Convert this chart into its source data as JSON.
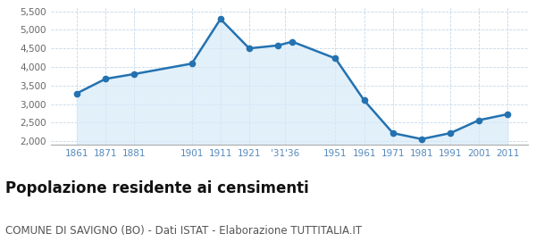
{
  "years": [
    1861,
    1871,
    1881,
    1901,
    1911,
    1921,
    1931,
    1936,
    1951,
    1961,
    1971,
    1981,
    1991,
    2001,
    2011
  ],
  "population": [
    3290,
    3680,
    3810,
    4090,
    5290,
    4500,
    4580,
    4680,
    4230,
    3100,
    2220,
    2060,
    2220,
    2570,
    2730
  ],
  "x_tick_labels": [
    "1861",
    "1871",
    "1881",
    "1901",
    "1911",
    "1921",
    "'31'36",
    "1951",
    "1961",
    "1971",
    "1981",
    "1991",
    "2001",
    "2011"
  ],
  "x_tick_positions": [
    1861,
    1871,
    1881,
    1901,
    1911,
    1921,
    1933.5,
    1951,
    1961,
    1971,
    1981,
    1991,
    2001,
    2011
  ],
  "ylim": [
    1900,
    5600
  ],
  "yticks": [
    2000,
    2500,
    3000,
    3500,
    4000,
    4500,
    5000,
    5500
  ],
  "ytick_labels": [
    "2,000",
    "2,500",
    "3,000",
    "3,500",
    "4,000",
    "4,500",
    "5,000",
    "5,500"
  ],
  "line_color": "#2472b0",
  "fill_color": "#d6eaf8",
  "fill_alpha": 0.7,
  "marker_size": 4.5,
  "line_width": 1.8,
  "title": "Popolazione residente ai censimenti",
  "subtitle": "COMUNE DI SAVIGNO (BO) - Dati ISTAT - Elaborazione TUTTITALIA.IT",
  "title_fontsize": 12,
  "subtitle_fontsize": 8.5,
  "background_color": "#ffffff",
  "grid_color": "#c5d8ea",
  "xlim": [
    1852,
    2018
  ]
}
